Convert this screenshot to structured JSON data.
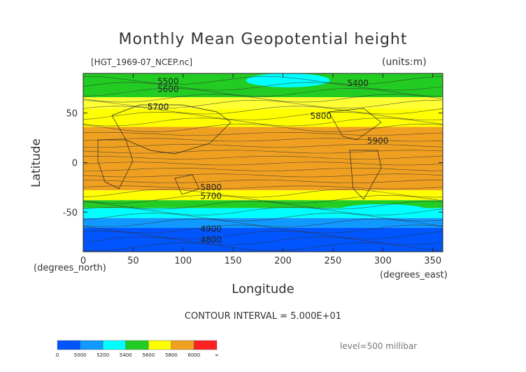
{
  "chart_data": {
    "type": "heatmap",
    "title": "Monthly Mean Geopotential height",
    "file_label": "[HGT_1969-07_NCEP.nc]",
    "units_label": "(units:m)",
    "xlabel": "Longitude",
    "ylabel": "Latitude",
    "x_unit_label": "(degrees_east)",
    "y_unit_label": "(degrees_north)",
    "xlim": [
      0,
      360
    ],
    "ylim": [
      -90,
      90
    ],
    "x_ticks": [
      0,
      50,
      100,
      150,
      200,
      250,
      300,
      350
    ],
    "y_ticks": [
      -50,
      0,
      50
    ],
    "contour_interval_text": "CONTOUR INTERVAL = 5.000E+01",
    "level_text": "level=500 millibar",
    "bands": [
      {
        "lat_bottom": 66,
        "lat_top": 90,
        "color": "#22cc22"
      },
      {
        "lat_bottom": 54,
        "lat_top": 66,
        "color": "#ffff33"
      },
      {
        "lat_bottom": 36,
        "lat_top": 54,
        "color": "#ffff00"
      },
      {
        "lat_bottom": -28,
        "lat_top": 36,
        "color": "#f0a020"
      },
      {
        "lat_bottom": -38,
        "lat_top": -28,
        "color": "#ffff00"
      },
      {
        "lat_bottom": -46,
        "lat_top": -38,
        "color": "#22cc22"
      },
      {
        "lat_bottom": -56,
        "lat_top": -46,
        "color": "#00ffff"
      },
      {
        "lat_bottom": -66,
        "lat_top": -56,
        "color": "#1199ff"
      },
      {
        "lat_bottom": -90,
        "lat_top": -66,
        "color": "#0055ff"
      }
    ],
    "features": [
      {
        "lon": 90,
        "lat_top": 90,
        "lat_bottom": 78,
        "color": "#22cc22"
      },
      {
        "lon": 205,
        "lat_top": 90,
        "lat_bottom": 76,
        "color": "#00ffff"
      },
      {
        "lon": 300,
        "lat_top": -42,
        "lat_bottom": -52,
        "color": "#00ffff"
      }
    ],
    "contour_labels": [
      {
        "text": "5500",
        "lon": 85,
        "lat": 82
      },
      {
        "text": "5600",
        "lon": 85,
        "lat": 74
      },
      {
        "text": "5400",
        "lon": 275,
        "lat": 80
      },
      {
        "text": "5700",
        "lon": 75,
        "lat": 56
      },
      {
        "text": "5800",
        "lon": 238,
        "lat": 47
      },
      {
        "text": "5900",
        "lon": 295,
        "lat": 22
      },
      {
        "text": "5800",
        "lon": 128,
        "lat": -25
      },
      {
        "text": "5700",
        "lon": 128,
        "lat": -34
      },
      {
        "text": "4900",
        "lon": 128,
        "lat": -67
      },
      {
        "text": "4800",
        "lon": 128,
        "lat": -78
      }
    ],
    "colorbar": {
      "labels": [
        "0",
        "5000",
        "5200",
        "5400",
        "5600",
        "5800",
        "6000",
        "∞"
      ],
      "colors": [
        "#0055ff",
        "#1199ff",
        "#00ffff",
        "#22cc22",
        "#ffff00",
        "#f0a020",
        "#ff2222"
      ]
    }
  }
}
